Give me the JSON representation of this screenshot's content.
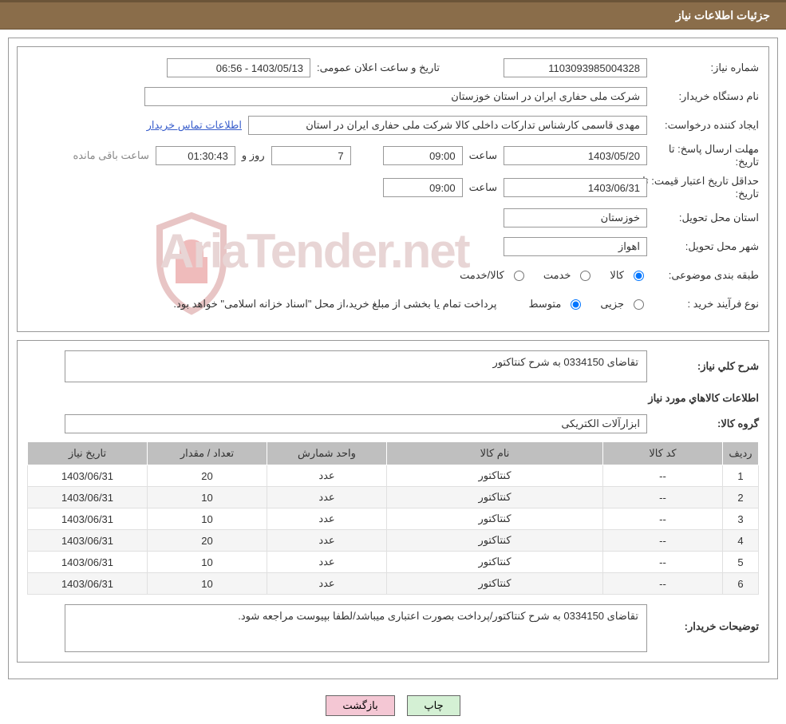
{
  "header": {
    "title": "جزئیات اطلاعات نیاز"
  },
  "fields": {
    "need_number_label": "شماره نیاز:",
    "need_number": "1103093985004328",
    "announce_datetime_label": "تاریخ و ساعت اعلان عمومی:",
    "announce_datetime": "1403/05/13 - 06:56",
    "buyer_org_label": "نام دستگاه خریدار:",
    "buyer_org": "شرکت ملی حفاری ایران در استان خوزستان",
    "requester_label": "ایجاد کننده درخواست:",
    "requester": "مهدی قاسمی کارشناس تدارکات داخلی کالا شرکت ملی حفاری ایران در استان",
    "buyer_contact_link": "اطلاعات تماس خریدار",
    "deadline_label_1": "مهلت ارسال پاسخ:",
    "deadline_label_2": "تا تاریخ:",
    "deadline_date": "1403/05/20",
    "time_label": "ساعت",
    "deadline_time": "09:00",
    "days_remaining": "7",
    "days_label": "روز و",
    "time_remaining": "01:30:43",
    "remaining_label": "ساعت باقی مانده",
    "min_validity_label_1": "حداقل تاریخ اعتبار قیمت:",
    "min_validity_label_2": "تا تاریخ:",
    "min_validity_date": "1403/06/31",
    "min_validity_time": "09:00",
    "delivery_province_label": "استان محل تحویل:",
    "delivery_province": "خوزستان",
    "delivery_city_label": "شهر محل تحویل:",
    "delivery_city": "اهواز",
    "classification_label": "طبقه بندی موضوعی:",
    "class_goods": "کالا",
    "class_service": "خدمت",
    "class_goods_service": "کالا/خدمت",
    "purchase_type_label": "نوع فرآیند خرید :",
    "type_partial": "جزیی",
    "type_medium": "متوسط",
    "purchase_note": "پرداخت تمام یا بخشی از مبلغ خرید،از محل \"اسناد خزانه اسلامی\" خواهد بود.",
    "general_desc_label": "شرح کلي نياز:",
    "general_desc": "تقاضای 0334150 به شرح کنتاکتور",
    "goods_info_title": "اطلاعات کالاهاي مورد نياز",
    "goods_group_label": "گروه کالا:",
    "goods_group": "ابزارآلات الکتریکی",
    "buyer_notes_label": "توضیحات خریدار:",
    "buyer_notes": "تقاضای 0334150 به شرح کنتاکتور/پرداخت بصورت اعتباری میباشد/لطفا بپیوست مراجعه شود."
  },
  "table": {
    "headers": {
      "idx": "ردیف",
      "code": "کد کالا",
      "name": "نام کالا",
      "unit": "واحد شمارش",
      "qty": "تعداد / مقدار",
      "date": "تاریخ نیاز"
    },
    "rows": [
      {
        "idx": "1",
        "code": "--",
        "name": "کنتاکتور",
        "unit": "عدد",
        "qty": "20",
        "date": "1403/06/31"
      },
      {
        "idx": "2",
        "code": "--",
        "name": "کنتاکتور",
        "unit": "عدد",
        "qty": "10",
        "date": "1403/06/31"
      },
      {
        "idx": "3",
        "code": "--",
        "name": "کنتاکتور",
        "unit": "عدد",
        "qty": "10",
        "date": "1403/06/31"
      },
      {
        "idx": "4",
        "code": "--",
        "name": "کنتاکتور",
        "unit": "عدد",
        "qty": "20",
        "date": "1403/06/31"
      },
      {
        "idx": "5",
        "code": "--",
        "name": "کنتاکتور",
        "unit": "عدد",
        "qty": "10",
        "date": "1403/06/31"
      },
      {
        "idx": "6",
        "code": "--",
        "name": "کنتاکتور",
        "unit": "عدد",
        "qty": "10",
        "date": "1403/06/31"
      }
    ]
  },
  "buttons": {
    "print": "چاپ",
    "back": "بازگشت"
  },
  "watermark_text": "AriaTender.net",
  "colors": {
    "header_bg": "#8a6d4a",
    "header_border": "#6b5438",
    "box_border": "#999999",
    "th_bg": "#bfbfbf",
    "link": "#3a5fcc",
    "btn_print": "#d4f0d4",
    "btn_back": "#f4c7d4",
    "watermark": "#e8d5d5"
  }
}
